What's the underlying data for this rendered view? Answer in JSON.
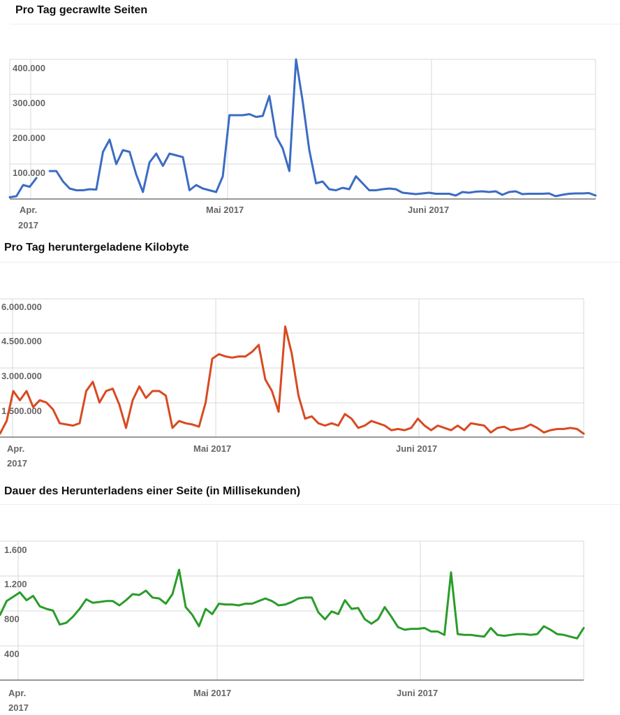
{
  "colors": {
    "blue": "#3b6cc4",
    "red": "#d84a22",
    "green": "#2a9c2a",
    "grid": "#d9d9d9",
    "tick": "#666666"
  },
  "chart_data": [
    {
      "type": "line",
      "title": "Pro Tag gecrawlte Seiten",
      "xlabel": "",
      "ylabel": "",
      "x_ticks": [
        "Apr. 2017",
        "Mai 2017",
        "Juni 2017"
      ],
      "y_ticks": [
        "100.000",
        "200.000",
        "300.000",
        "400.000"
      ],
      "ylim": [
        0,
        400000
      ],
      "grid": true,
      "series": [
        {
          "color": "#3b6cc4",
          "values": [
            5000,
            8000,
            40000,
            35000,
            60000,
            null,
            80000,
            80000,
            50000,
            30000,
            25000,
            25000,
            28000,
            27000,
            135000,
            170000,
            100000,
            140000,
            135000,
            70000,
            20000,
            105000,
            130000,
            95000,
            130000,
            125000,
            120000,
            25000,
            40000,
            30000,
            25000,
            20000,
            65000,
            240000,
            240000,
            240000,
            243000,
            235000,
            238000,
            295000,
            180000,
            145000,
            80000,
            400000,
            280000,
            140000,
            45000,
            50000,
            28000,
            25000,
            32000,
            28000,
            65000,
            45000,
            25000,
            25000,
            28000,
            30000,
            28000,
            18000,
            16000,
            14000,
            16000,
            18000,
            15000,
            15000,
            15000,
            10000,
            20000,
            18000,
            21000,
            22000,
            20000,
            22000,
            12000,
            20000,
            22000,
            14000,
            15000,
            15000,
            15000,
            16000,
            8000,
            12000,
            15000,
            16000,
            16000,
            17000,
            10000
          ]
        }
      ]
    },
    {
      "type": "line",
      "title": "Pro Tag heruntergeladene Kilobyte",
      "xlabel": "",
      "ylabel": "",
      "x_ticks": [
        "Apr. 2017",
        "Mai 2017",
        "Juni 2017"
      ],
      "y_ticks": [
        "1.500.000",
        "3.000.000",
        "4.500.000",
        "6.000.000"
      ],
      "ylim": [
        0,
        6000000
      ],
      "grid": true,
      "series": [
        {
          "color": "#d84a22",
          "values": [
            150000,
            700000,
            2000000,
            1600000,
            2000000,
            1300000,
            1600000,
            1500000,
            1200000,
            600000,
            550000,
            500000,
            600000,
            2000000,
            2400000,
            1500000,
            2000000,
            2100000,
            1400000,
            400000,
            1600000,
            2200000,
            1700000,
            2000000,
            2000000,
            1800000,
            400000,
            700000,
            600000,
            550000,
            450000,
            1500000,
            3400000,
            3600000,
            3500000,
            3450000,
            3500000,
            3500000,
            3700000,
            4000000,
            2500000,
            2000000,
            1100000,
            4800000,
            3600000,
            1800000,
            800000,
            900000,
            600000,
            500000,
            600000,
            500000,
            1000000,
            800000,
            400000,
            500000,
            700000,
            600000,
            500000,
            300000,
            350000,
            300000,
            400000,
            800000,
            500000,
            300000,
            500000,
            400000,
            300000,
            500000,
            300000,
            600000,
            550000,
            500000,
            200000,
            400000,
            450000,
            300000,
            350000,
            400000,
            550000,
            400000,
            200000,
            300000,
            350000,
            350000,
            400000,
            350000,
            150000
          ]
        }
      ]
    },
    {
      "type": "line",
      "title": "Dauer des Herunterladens einer Seite (in Millisekunden)",
      "xlabel": "",
      "ylabel": "",
      "x_ticks": [
        "Apr. 2017",
        "Mai 2017",
        "Juni 2017"
      ],
      "y_ticks": [
        "400",
        "800",
        "1.200",
        "1.600"
      ],
      "ylim": [
        0,
        1600
      ],
      "grid": true,
      "series": [
        {
          "color": "#2a9c2a",
          "values": [
            750,
            910,
            960,
            1010,
            920,
            970,
            850,
            820,
            800,
            640,
            660,
            730,
            820,
            930,
            890,
            900,
            910,
            910,
            860,
            920,
            990,
            980,
            1030,
            950,
            940,
            880,
            990,
            1270,
            840,
            750,
            620,
            820,
            760,
            880,
            870,
            870,
            860,
            880,
            880,
            910,
            940,
            910,
            860,
            870,
            900,
            940,
            950,
            950,
            780,
            700,
            790,
            760,
            920,
            820,
            830,
            700,
            650,
            700,
            840,
            730,
            610,
            580,
            590,
            590,
            600,
            560,
            560,
            520,
            1240,
            530,
            520,
            520,
            510,
            500,
            600,
            520,
            510,
            520,
            530,
            530,
            520,
            530,
            620,
            580,
            530,
            520,
            500,
            480,
            600
          ]
        }
      ]
    }
  ]
}
